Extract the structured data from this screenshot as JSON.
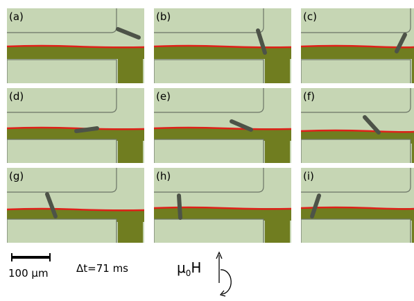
{
  "panels": [
    "(a)",
    "(b)",
    "(c)",
    "(d)",
    "(e)",
    "(f)",
    "(g)",
    "(h)",
    "(i)"
  ],
  "scale_bar": "100 μm",
  "time_step": "Δt=71 ms",
  "field_label": {
    "symbol": "μ",
    "subscript": "0",
    "letter": "H"
  }
}
